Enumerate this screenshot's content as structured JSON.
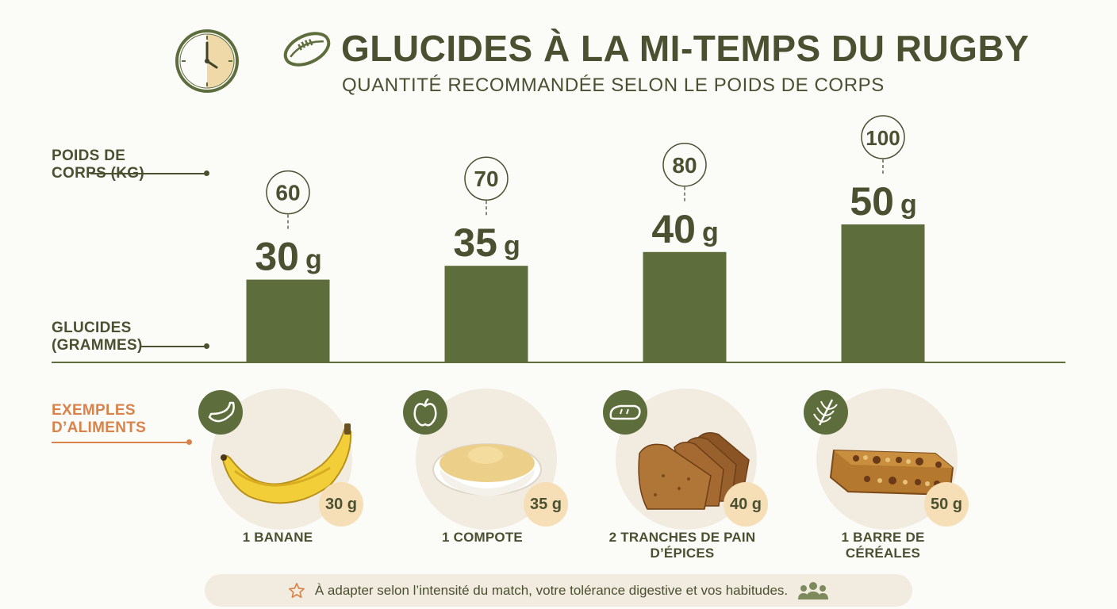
{
  "header": {
    "title": "GLUCIDES À LA MI-TEMPS DU RUGBY",
    "subtitle": "QUANTITÉ RECOMMANDÉE SELON LE POIDS DE CORPS",
    "icons": [
      "clock-icon",
      "rugby-ball-icon"
    ]
  },
  "labels": {
    "weight": "POIDS DE CORPS (KG)",
    "carbs": "GLUCIDES (GRAMMES)",
    "foods": "EXEMPLES D’ALIMENTS"
  },
  "chart_data": {
    "type": "bar",
    "categories": [
      "60",
      "70",
      "80",
      "100"
    ],
    "values": [
      30,
      35,
      40,
      50
    ],
    "value_unit": "g",
    "title": "GLUCIDES À LA MI-TEMPS DU RUGBY",
    "subtitle": "QUANTITÉ RECOMMANDÉE SELON LE POIDS DE CORPS",
    "xlabel": "POIDS DE CORPS (KG)",
    "ylabel": "GLUCIDES (GRAMMES)",
    "ylim": [
      0,
      50
    ],
    "grid": false,
    "bar_color": "#5e6d3c"
  },
  "foods": [
    {
      "name": "1 BANANE",
      "amount": "30 g",
      "icon": "banana-icon"
    },
    {
      "name": "1 COMPOTE",
      "amount": "35 g",
      "icon": "apple-icon"
    },
    {
      "name": "2 TRANCHES DE PAIN D’ÉPICES",
      "amount": "40 g",
      "icon": "bread-icon"
    },
    {
      "name": "1 BARRE DE CÉRÉALES",
      "amount": "50 g",
      "icon": "wheat-icon"
    }
  ],
  "footer": {
    "note": "À adapter selon l’intensité du match, votre tolérance digestive et vos habitudes.",
    "icons": [
      "star-icon",
      "people-icon"
    ]
  },
  "colors": {
    "primary": "#4a5030",
    "bar": "#5e6d3c",
    "accent": "#d9824a",
    "badge": "#f6dfb6",
    "disc": "#f2ece0"
  }
}
